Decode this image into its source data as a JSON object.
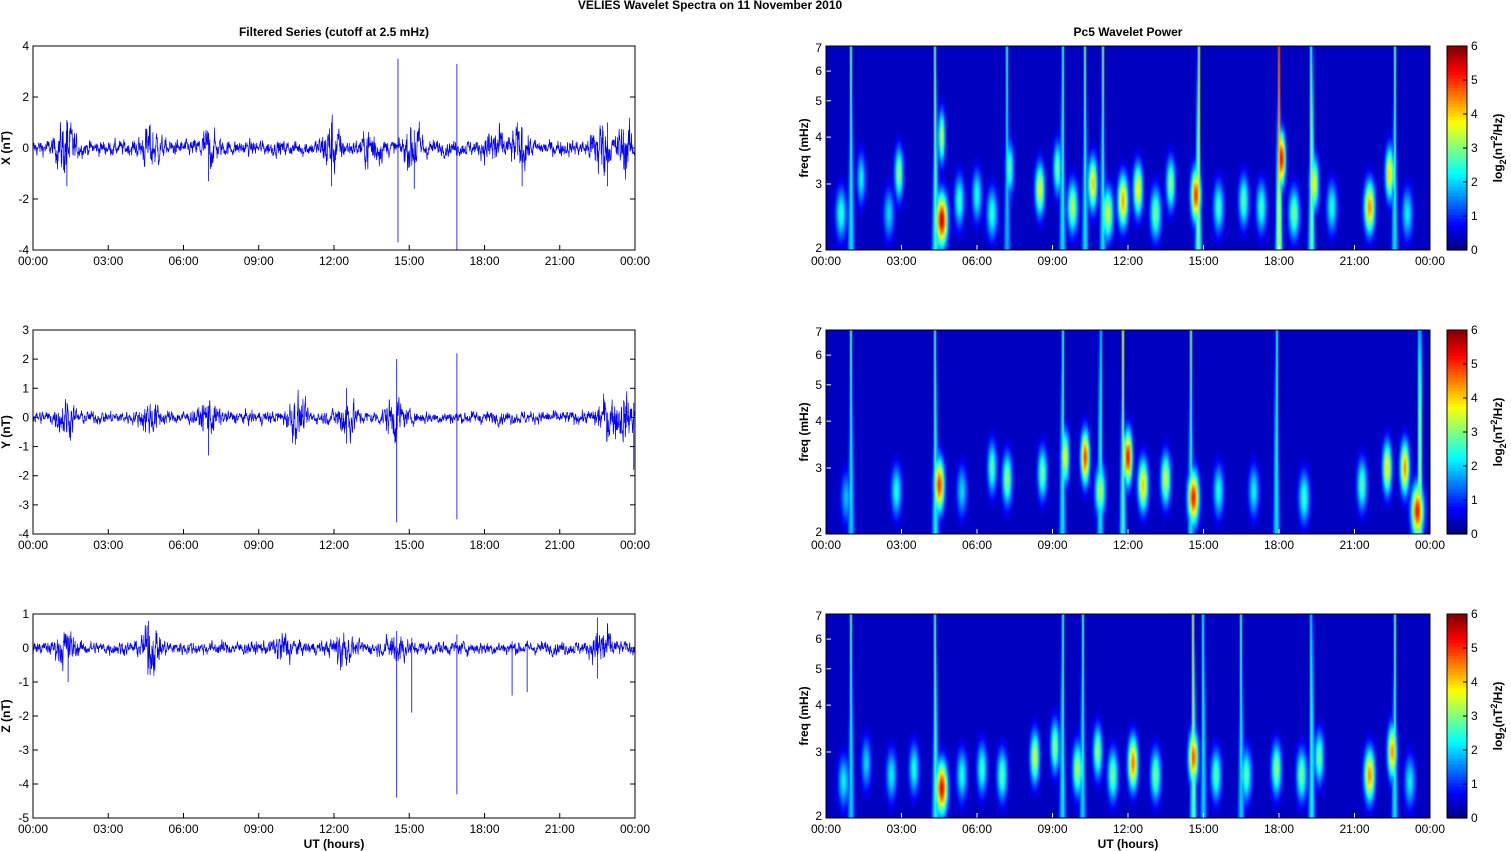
{
  "figure": {
    "title": "VELIES Wavelet Spectra on 11 November  2010"
  },
  "chart_data": [
    {
      "type": "line",
      "panel": "x-series",
      "title": "Filtered Series (cutoff at 2.5 mHz)",
      "xlabel": "",
      "ylabel": "X (nT)",
      "xticks": [
        "00:00",
        "03:00",
        "06:00",
        "09:00",
        "12:00",
        "15:00",
        "18:00",
        "21:00",
        "00:00"
      ],
      "xlim": [
        0,
        24
      ],
      "ylim": [
        -4,
        4
      ],
      "yticks": [
        -4,
        -2,
        0,
        2,
        4
      ],
      "grid": false,
      "series_color": "#0000ff",
      "noise_amplitude": 0.22,
      "bursts": [
        {
          "t": 1.3,
          "amp": 0.7
        },
        {
          "t": 4.7,
          "amp": 0.55
        },
        {
          "t": 7.0,
          "amp": 0.4
        },
        {
          "t": 11.9,
          "amp": 0.65
        },
        {
          "t": 13.5,
          "amp": 0.5
        },
        {
          "t": 15.2,
          "amp": 0.6
        },
        {
          "t": 18.4,
          "amp": 0.55
        },
        {
          "t": 19.4,
          "amp": 0.5
        },
        {
          "t": 22.6,
          "amp": 0.7
        },
        {
          "t": 23.6,
          "amp": 0.6
        }
      ],
      "spikes": [
        {
          "t": 14.55,
          "min": -3.7,
          "max": 3.5
        },
        {
          "t": 16.9,
          "min": -4.0,
          "max": 3.3
        },
        {
          "t": 1.35,
          "min": -1.5,
          "max": 1.1
        },
        {
          "t": 11.9,
          "min": -1.5,
          "max": 1.0
        },
        {
          "t": 15.2,
          "min": -1.6,
          "max": 0.7
        },
        {
          "t": 19.5,
          "min": -1.5,
          "max": 0.8
        },
        {
          "t": 22.9,
          "min": -1.5,
          "max": 1.0
        },
        {
          "t": 7.0,
          "min": -1.3,
          "max": 0.4
        }
      ]
    },
    {
      "type": "line",
      "panel": "y-series",
      "title": "",
      "xlabel": "",
      "ylabel": "Y (nT)",
      "xticks": [
        "00:00",
        "03:00",
        "06:00",
        "09:00",
        "12:00",
        "15:00",
        "18:00",
        "21:00",
        "00:00"
      ],
      "xlim": [
        0,
        24
      ],
      "ylim": [
        -4,
        3
      ],
      "yticks": [
        -4,
        -3,
        -2,
        -1,
        0,
        1,
        2,
        3
      ],
      "grid": false,
      "series_color": "#0000ff",
      "noise_amplitude": 0.16,
      "bursts": [
        {
          "t": 1.3,
          "amp": 0.4
        },
        {
          "t": 4.7,
          "amp": 0.35
        },
        {
          "t": 7.0,
          "amp": 0.35
        },
        {
          "t": 10.5,
          "amp": 0.45
        },
        {
          "t": 12.5,
          "amp": 0.5
        },
        {
          "t": 14.4,
          "amp": 0.45
        },
        {
          "t": 22.9,
          "amp": 0.45
        },
        {
          "t": 23.6,
          "amp": 0.5
        }
      ],
      "spikes": [
        {
          "t": 14.5,
          "min": -3.6,
          "max": 2.0
        },
        {
          "t": 16.9,
          "min": -3.5,
          "max": 2.2
        },
        {
          "t": 7.0,
          "min": -1.3,
          "max": 0.4
        },
        {
          "t": 12.5,
          "min": -0.9,
          "max": 1.0
        },
        {
          "t": 23.95,
          "min": -1.8,
          "max": 0.5
        }
      ]
    },
    {
      "type": "line",
      "panel": "z-series",
      "title": "",
      "xlabel": "UT (hours)",
      "ylabel": "Z (nT)",
      "xticks": [
        "00:00",
        "03:00",
        "06:00",
        "09:00",
        "12:00",
        "15:00",
        "18:00",
        "21:00",
        "00:00"
      ],
      "xlim": [
        0,
        24
      ],
      "ylim": [
        -5,
        1
      ],
      "yticks": [
        -5,
        -4,
        -3,
        -2,
        -1,
        0,
        1
      ],
      "grid": false,
      "series_color": "#0000ff",
      "noise_amplitude": 0.14,
      "bursts": [
        {
          "t": 1.3,
          "amp": 0.3
        },
        {
          "t": 4.7,
          "amp": 0.45
        },
        {
          "t": 10.0,
          "amp": 0.3
        },
        {
          "t": 12.3,
          "amp": 0.35
        },
        {
          "t": 14.5,
          "amp": 0.3
        },
        {
          "t": 22.7,
          "amp": 0.45
        }
      ],
      "spikes": [
        {
          "t": 14.5,
          "min": -4.4,
          "max": 0.5
        },
        {
          "t": 16.9,
          "min": -4.3,
          "max": 0.4
        },
        {
          "t": 15.1,
          "min": -1.9,
          "max": 0.3
        },
        {
          "t": 1.4,
          "min": -1.0,
          "max": 0.3
        },
        {
          "t": 19.1,
          "min": -1.4,
          "max": 0.2
        },
        {
          "t": 19.7,
          "min": -1.3,
          "max": 0.2
        },
        {
          "t": 22.5,
          "min": -0.9,
          "max": 0.9
        },
        {
          "t": 4.6,
          "min": -0.6,
          "max": 0.8
        }
      ]
    },
    {
      "type": "heatmap",
      "panel": "x-wavelet",
      "title": "Pc5 Wavelet Power",
      "xlabel": "",
      "ylabel": "freq (mHz)",
      "xticks": [
        "00:00",
        "03:00",
        "06:00",
        "09:00",
        "12:00",
        "15:00",
        "18:00",
        "21:00",
        "00:00"
      ],
      "xlim": [
        0,
        24
      ],
      "ylim": [
        2,
        7
      ],
      "yscale": "log",
      "yticks": [
        2,
        3,
        4,
        5,
        6,
        7
      ],
      "colorbar": {
        "label": "log2(nT2/Hz)",
        "ticks": [
          0,
          1,
          2,
          3,
          4,
          5,
          6
        ],
        "range": [
          0,
          6
        ],
        "colormap": "jet"
      },
      "blobs": [
        {
          "t": 0.6,
          "f": 2.5,
          "p": 2.5
        },
        {
          "t": 1.4,
          "f": 3.1,
          "p": 2.2
        },
        {
          "t": 2.5,
          "f": 2.5,
          "p": 2.0
        },
        {
          "t": 2.9,
          "f": 3.2,
          "p": 3.2
        },
        {
          "t": 4.6,
          "f": 2.4,
          "p": 5.8
        },
        {
          "t": 4.6,
          "f": 4.0,
          "p": 3.5
        },
        {
          "t": 5.3,
          "f": 2.7,
          "p": 2.6
        },
        {
          "t": 6.0,
          "f": 2.8,
          "p": 2.4
        },
        {
          "t": 6.6,
          "f": 2.5,
          "p": 2.5
        },
        {
          "t": 7.3,
          "f": 3.3,
          "p": 2.8
        },
        {
          "t": 8.5,
          "f": 2.9,
          "p": 3.8
        },
        {
          "t": 9.2,
          "f": 3.3,
          "p": 3.0
        },
        {
          "t": 9.8,
          "f": 2.6,
          "p": 3.4
        },
        {
          "t": 10.6,
          "f": 3.0,
          "p": 4.2
        },
        {
          "t": 11.2,
          "f": 2.5,
          "p": 3.6
        },
        {
          "t": 11.8,
          "f": 2.7,
          "p": 4.5
        },
        {
          "t": 12.4,
          "f": 2.9,
          "p": 4.0
        },
        {
          "t": 13.1,
          "f": 2.5,
          "p": 3.0
        },
        {
          "t": 13.7,
          "f": 3.0,
          "p": 3.2
        },
        {
          "t": 14.7,
          "f": 2.8,
          "p": 5.2
        },
        {
          "t": 15.6,
          "f": 2.6,
          "p": 2.6
        },
        {
          "t": 16.6,
          "f": 2.7,
          "p": 2.8
        },
        {
          "t": 17.3,
          "f": 2.6,
          "p": 2.6
        },
        {
          "t": 18.1,
          "f": 3.5,
          "p": 5.6
        },
        {
          "t": 18.6,
          "f": 2.5,
          "p": 3.0
        },
        {
          "t": 19.4,
          "f": 3.0,
          "p": 3.8
        },
        {
          "t": 20.1,
          "f": 2.6,
          "p": 2.4
        },
        {
          "t": 21.6,
          "f": 2.6,
          "p": 4.6
        },
        {
          "t": 22.4,
          "f": 3.2,
          "p": 4.2
        },
        {
          "t": 23.1,
          "f": 2.5,
          "p": 2.2
        }
      ],
      "streaks": [
        {
          "t": 1.0,
          "p": 3.0
        },
        {
          "t": 4.35,
          "p": 3.6
        },
        {
          "t": 7.2,
          "p": 2.5
        },
        {
          "t": 9.4,
          "p": 3.0
        },
        {
          "t": 10.3,
          "p": 3.0
        },
        {
          "t": 11.0,
          "p": 3.0
        },
        {
          "t": 14.8,
          "p": 4.2
        },
        {
          "t": 18.0,
          "p": 5.0
        },
        {
          "t": 19.3,
          "p": 4.0
        },
        {
          "t": 22.6,
          "p": 3.0
        }
      ]
    },
    {
      "type": "heatmap",
      "panel": "y-wavelet",
      "title": "",
      "xlabel": "",
      "ylabel": "freq (mHz)",
      "xticks": [
        "00:00",
        "03:00",
        "06:00",
        "09:00",
        "12:00",
        "15:00",
        "18:00",
        "21:00",
        "00:00"
      ],
      "xlim": [
        0,
        24
      ],
      "ylim": [
        2,
        7
      ],
      "yscale": "log",
      "yticks": [
        2,
        3,
        4,
        5,
        6,
        7
      ],
      "colorbar": {
        "label": "log2(nT2/Hz)",
        "ticks": [
          0,
          1,
          2,
          3,
          4,
          5,
          6
        ],
        "range": [
          0,
          6
        ],
        "colormap": "jet"
      },
      "blobs": [
        {
          "t": 0.8,
          "f": 2.5,
          "p": 1.8
        },
        {
          "t": 2.8,
          "f": 2.6,
          "p": 2.4
        },
        {
          "t": 4.5,
          "f": 2.7,
          "p": 5.2
        },
        {
          "t": 5.4,
          "f": 2.6,
          "p": 2.0
        },
        {
          "t": 6.6,
          "f": 3.0,
          "p": 2.8
        },
        {
          "t": 7.2,
          "f": 2.8,
          "p": 3.2
        },
        {
          "t": 8.6,
          "f": 2.9,
          "p": 3.0
        },
        {
          "t": 9.5,
          "f": 3.2,
          "p": 3.8
        },
        {
          "t": 10.3,
          "f": 3.2,
          "p": 5.2
        },
        {
          "t": 10.9,
          "f": 2.6,
          "p": 3.4
        },
        {
          "t": 12.0,
          "f": 3.2,
          "p": 5.5
        },
        {
          "t": 12.6,
          "f": 2.7,
          "p": 4.2
        },
        {
          "t": 13.5,
          "f": 2.8,
          "p": 3.6
        },
        {
          "t": 14.6,
          "f": 2.5,
          "p": 5.4
        },
        {
          "t": 15.6,
          "f": 2.6,
          "p": 2.4
        },
        {
          "t": 17.0,
          "f": 2.6,
          "p": 2.2
        },
        {
          "t": 19.0,
          "f": 2.5,
          "p": 2.6
        },
        {
          "t": 21.3,
          "f": 2.7,
          "p": 2.8
        },
        {
          "t": 22.3,
          "f": 3.0,
          "p": 4.0
        },
        {
          "t": 23.0,
          "f": 3.0,
          "p": 4.6
        },
        {
          "t": 23.5,
          "f": 2.3,
          "p": 5.4
        }
      ],
      "streaks": [
        {
          "t": 1.0,
          "p": 2.8
        },
        {
          "t": 4.35,
          "p": 3.2
        },
        {
          "t": 9.4,
          "p": 3.0
        },
        {
          "t": 10.9,
          "p": 3.0
        },
        {
          "t": 11.8,
          "p": 3.6
        },
        {
          "t": 14.5,
          "p": 3.0
        },
        {
          "t": 17.9,
          "p": 3.0
        },
        {
          "t": 23.6,
          "p": 4.2
        }
      ]
    },
    {
      "type": "heatmap",
      "panel": "z-wavelet",
      "title": "",
      "xlabel": "UT (hours)",
      "ylabel": "freq (mHz)",
      "xticks": [
        "00:00",
        "03:00",
        "06:00",
        "09:00",
        "12:00",
        "15:00",
        "18:00",
        "21:00",
        "00:00"
      ],
      "xlim": [
        0,
        24
      ],
      "ylim": [
        2,
        7
      ],
      "yscale": "log",
      "yticks": [
        2,
        3,
        4,
        5,
        6,
        7
      ],
      "colorbar": {
        "label": "log2(nT2/Hz)",
        "ticks": [
          0,
          1,
          2,
          3,
          4,
          5,
          6
        ],
        "range": [
          0,
          6
        ],
        "colormap": "jet"
      },
      "blobs": [
        {
          "t": 0.7,
          "f": 2.5,
          "p": 2.2
        },
        {
          "t": 1.6,
          "f": 2.8,
          "p": 2.0
        },
        {
          "t": 2.6,
          "f": 2.6,
          "p": 2.2
        },
        {
          "t": 3.5,
          "f": 2.7,
          "p": 2.4
        },
        {
          "t": 4.6,
          "f": 2.4,
          "p": 5.6
        },
        {
          "t": 5.4,
          "f": 2.6,
          "p": 2.4
        },
        {
          "t": 6.2,
          "f": 2.7,
          "p": 2.6
        },
        {
          "t": 7.0,
          "f": 2.6,
          "p": 2.8
        },
        {
          "t": 8.3,
          "f": 2.9,
          "p": 3.6
        },
        {
          "t": 9.1,
          "f": 3.1,
          "p": 3.2
        },
        {
          "t": 10.0,
          "f": 2.7,
          "p": 3.4
        },
        {
          "t": 10.8,
          "f": 3.0,
          "p": 3.2
        },
        {
          "t": 11.4,
          "f": 2.6,
          "p": 3.0
        },
        {
          "t": 12.2,
          "f": 2.8,
          "p": 4.8
        },
        {
          "t": 13.1,
          "f": 2.6,
          "p": 3.0
        },
        {
          "t": 14.6,
          "f": 2.9,
          "p": 5.0
        },
        {
          "t": 15.5,
          "f": 2.6,
          "p": 2.8
        },
        {
          "t": 16.7,
          "f": 2.6,
          "p": 2.8
        },
        {
          "t": 17.9,
          "f": 2.7,
          "p": 3.2
        },
        {
          "t": 18.9,
          "f": 2.6,
          "p": 3.0
        },
        {
          "t": 19.6,
          "f": 2.9,
          "p": 3.0
        },
        {
          "t": 21.6,
          "f": 2.6,
          "p": 4.6
        },
        {
          "t": 22.5,
          "f": 3.0,
          "p": 4.6
        },
        {
          "t": 23.2,
          "f": 2.5,
          "p": 2.2
        }
      ],
      "streaks": [
        {
          "t": 1.0,
          "p": 2.8
        },
        {
          "t": 4.35,
          "p": 3.4
        },
        {
          "t": 9.4,
          "p": 3.0
        },
        {
          "t": 10.2,
          "p": 2.8
        },
        {
          "t": 14.6,
          "p": 4.0
        },
        {
          "t": 15.0,
          "p": 2.8
        },
        {
          "t": 16.5,
          "p": 2.8
        },
        {
          "t": 19.3,
          "p": 3.2
        },
        {
          "t": 22.6,
          "p": 3.0
        }
      ]
    }
  ]
}
